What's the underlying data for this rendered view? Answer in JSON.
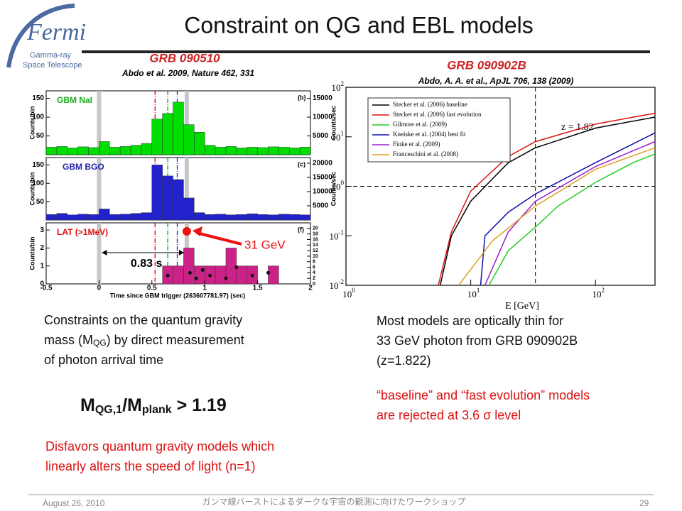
{
  "header": {
    "title": "Constraint on QG and EBL models",
    "logo": {
      "name": "Fermi",
      "line1": "Gamma-ray",
      "line2": "Space Telescope"
    }
  },
  "left_figure": {
    "title": "GRB 090510",
    "reference": "Abdo et al. 2009, Nature 462, 331",
    "xlim": [
      -0.5,
      2
    ],
    "xticks": [
      -0.5,
      0,
      0.5,
      1,
      1.5,
      2
    ],
    "xlabel": "Time since GBM trigger (263607781.97) (sec)",
    "bins": [
      -0.5,
      -0.4,
      -0.3,
      -0.2,
      -0.1,
      0,
      0.1,
      0.2,
      0.3,
      0.4,
      0.5,
      0.6,
      0.7,
      0.8,
      0.9,
      1,
      1.1,
      1.2,
      1.3,
      1.4,
      1.5,
      1.6,
      1.7,
      1.8,
      1.9,
      2
    ],
    "panels": [
      {
        "label": "GBM NaI",
        "tag": "(b)",
        "color": "#00dd00",
        "ylabel": "Counts/bin",
        "y2label": "Counts/sec",
        "ylim": [
          0,
          170
        ],
        "yticks": [
          50,
          100,
          150
        ],
        "y2lim": [
          0,
          17000
        ],
        "y2ticks": [
          5000,
          10000,
          15000
        ],
        "values": [
          20,
          22,
          18,
          21,
          19,
          35,
          20,
          22,
          25,
          30,
          95,
          110,
          140,
          80,
          60,
          25,
          20,
          22,
          18,
          20,
          19,
          21,
          20,
          18,
          20
        ]
      },
      {
        "label": "GBM BGO",
        "tag": "(c)",
        "color": "#2222cc",
        "ylabel": "Counts/bin",
        "y2label": "Counts/sec",
        "ylim": [
          0,
          170
        ],
        "yticks": [
          50,
          100,
          150
        ],
        "y2lim": [
          0,
          22000
        ],
        "y2ticks": [
          5000,
          10000,
          15000,
          20000
        ],
        "values": [
          15,
          18,
          14,
          16,
          15,
          30,
          15,
          16,
          18,
          20,
          150,
          120,
          110,
          60,
          20,
          15,
          16,
          14,
          15,
          17,
          15,
          14,
          16,
          15,
          14
        ]
      },
      {
        "label": "LAT (>1MeV)",
        "tag": "(f)",
        "color": "#cc2288",
        "ylabel": "Counts/bin",
        "ylim": [
          0,
          3.4
        ],
        "yticks": [
          0,
          1,
          2,
          3
        ],
        "y2lim": [
          0,
          22
        ],
        "y2ticks": [
          0,
          2,
          4,
          6,
          8,
          10,
          12,
          14,
          16,
          18,
          20
        ],
        "values": [
          0,
          0,
          0,
          0,
          0,
          0,
          0,
          0,
          0,
          0,
          0,
          1,
          1,
          2,
          1,
          1,
          1,
          2,
          1,
          1,
          0,
          1,
          0,
          0,
          0
        ],
        "points": {
          "x": [
            0.65,
            0.86,
            0.92,
            0.98,
            1.05,
            1.2,
            1.3,
            1.45,
            1.6
          ],
          "y": [
            3,
            4,
            2,
            5,
            3,
            2,
            6,
            3,
            4
          ]
        }
      }
    ],
    "reference_times": [
      {
        "value": 0.53,
        "color": "#dd0000"
      },
      {
        "value": 0.65,
        "color": "#00aa00"
      },
      {
        "value": 0.74,
        "color": "#2222cc"
      }
    ],
    "bands": [
      0,
      0.83
    ],
    "interval_label": "0.83 s",
    "photon_label": "31 GeV"
  },
  "right_figure": {
    "title": "GRB 090902B",
    "reference": "Abdo, A. A. et al., ApJL 706, 138 (2009)",
    "type": "line",
    "xlim": [
      1,
      300
    ],
    "xticks": [
      {
        "value": 1,
        "label": "10",
        "sup": "0"
      },
      {
        "value": 10,
        "label": "10",
        "sup": "1"
      },
      {
        "value": 100,
        "label": "10",
        "sup": "2"
      }
    ],
    "ylim": [
      0.01,
      100
    ],
    "yticks": [
      {
        "value": 0.01,
        "label": "10",
        "sup": "-2"
      },
      {
        "value": 0.1,
        "label": "10",
        "sup": "-1"
      },
      {
        "value": 1,
        "label": "10",
        "sup": "0"
      },
      {
        "value": 10,
        "label": "10",
        "sup": "1"
      },
      {
        "value": 100,
        "label": "10",
        "sup": "2"
      }
    ],
    "log_x": true,
    "log_y": true,
    "xlabel": "E [GeV]",
    "annotation": "z = 1.82",
    "photon_energy": 33,
    "tau_level": 1,
    "series": [
      {
        "name": "Stecker et al. (2006) baseline",
        "color": "#000000",
        "x": [
          5.7,
          7,
          10,
          20,
          33,
          100,
          300
        ],
        "values": [
          0.01,
          0.1,
          0.5,
          3,
          6,
          15,
          25
        ]
      },
      {
        "name": "Stecker et al. (2006) fast evolution",
        "color": "#dd1111",
        "x": [
          5.5,
          7,
          10,
          20,
          33,
          100,
          300
        ],
        "values": [
          0.01,
          0.12,
          0.8,
          4,
          8,
          18,
          30
        ]
      },
      {
        "name": "Gilmore et al. (2009)",
        "color": "#22cc22",
        "x": [
          14,
          20,
          33,
          50,
          100,
          200,
          300
        ],
        "values": [
          0.01,
          0.05,
          0.15,
          0.4,
          1.2,
          3,
          4.5
        ]
      },
      {
        "name": "Kneiske et al. (2004) best fit",
        "color": "#1111aa",
        "x": [
          12,
          13,
          20,
          33,
          100,
          300
        ],
        "values": [
          0.01,
          0.1,
          0.3,
          0.7,
          3,
          12
        ]
      },
      {
        "name": "Finke et al. (2009)",
        "color": "#9922cc",
        "x": [
          13,
          20,
          33,
          100,
          300
        ],
        "values": [
          0.01,
          0.12,
          0.5,
          2.5,
          8
        ]
      },
      {
        "name": "Franceschini et al. (2008)",
        "color": "#e0a020",
        "x": [
          8,
          15,
          33,
          100,
          300
        ],
        "values": [
          0.01,
          0.08,
          0.4,
          2.2,
          6
        ]
      }
    ]
  },
  "left_text": {
    "line1": "Constraints on the quantum gravity",
    "line2a": "mass (M",
    "line2sub": "QG",
    "line2b": ") by direct measurement",
    "line3": "of photon arrival time",
    "formula": {
      "m1": "M",
      "sub1": "QG,1",
      "m2": "/M",
      "sub2": "plank",
      "rest": " > 1.19"
    },
    "note1": "Disfavors quantum gravity models which",
    "note2": "linearly alters the speed of light (n=1)"
  },
  "right_text": {
    "line1": "Most models are optically thin for",
    "line2": "33 GeV photon from GRB 090902B",
    "line3": "(z=1.822)",
    "note1": "“baseline” and “fast evolution” models",
    "note2": "are rejected at 3.6 σ level"
  },
  "footer": {
    "date": "August 26, 2010",
    "event": "ガンマ線バーストによるダークな宇宙の観測に向けたワークショップ",
    "page": "29"
  }
}
